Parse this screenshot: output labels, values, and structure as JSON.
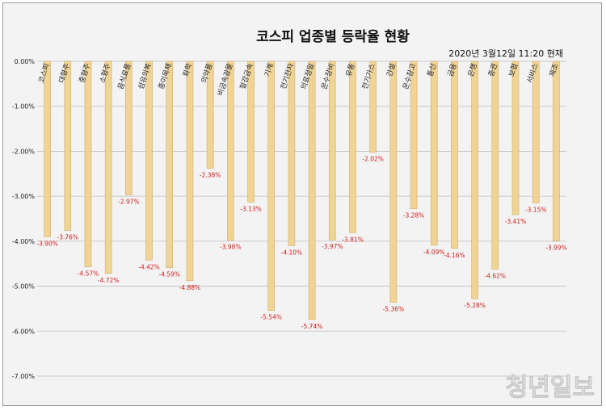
{
  "watermark": "청년일보",
  "chart_data": {
    "type": "bar",
    "title": "코스피 업종별 등락율 현황",
    "subtitle": "2020년 3월12일  11:20 현재",
    "categories": [
      "코스피",
      "대형주",
      "중형주",
      "소형주",
      "음식료품",
      "섬유의복",
      "종이목재",
      "화학",
      "의약품",
      "비금속광물",
      "철강금속",
      "기계",
      "전기전자",
      "의료정밀",
      "운수장비",
      "유통",
      "전기가스",
      "건설",
      "운수창고",
      "통신",
      "금융",
      "은행",
      "증권",
      "보험",
      "서비스",
      "제조"
    ],
    "values": [
      -3.9,
      -3.76,
      -4.57,
      -4.72,
      -2.97,
      -4.42,
      -4.59,
      -4.88,
      -2.38,
      -3.98,
      -3.13,
      -5.54,
      -4.1,
      -5.74,
      -3.97,
      -3.81,
      -2.02,
      -5.36,
      -3.28,
      -4.09,
      -4.16,
      -5.28,
      -4.62,
      -3.41,
      -3.15,
      -3.99
    ],
    "value_labels": [
      "-3.90%",
      "-3.76%",
      "-4.57%",
      "-4.72%",
      "-2.97%",
      "-4.42%",
      "-4.59%",
      "-4.88%",
      "-2.38%",
      "-3.98%",
      "-3.13%",
      "-5.54%",
      "-4.10%",
      "-5.74%",
      "-3.97%",
      "-3.81%",
      "-2.02%",
      "-5.36%",
      "-3.28%",
      "-4.09%",
      "-4.16%",
      "-5.28%",
      "-4.62%",
      "-3.41%",
      "-3.15%",
      "-3.99%"
    ],
    "y_ticks": [
      0,
      -1,
      -2,
      -3,
      -4,
      -5,
      -6,
      -7
    ],
    "y_tick_labels": [
      "0.00%",
      "-1.00%",
      "-2.00%",
      "-3.00%",
      "-4.00%",
      "-5.00%",
      "-6.00%",
      "-7.00%"
    ],
    "ylim": [
      -7,
      0
    ],
    "grid": true,
    "legend": "none",
    "colors": {
      "bar_fill": "#f0d496",
      "bar_stroke": "#cfae66",
      "value_label": "#d21a1a",
      "grid": "#bdbdbd"
    }
  }
}
